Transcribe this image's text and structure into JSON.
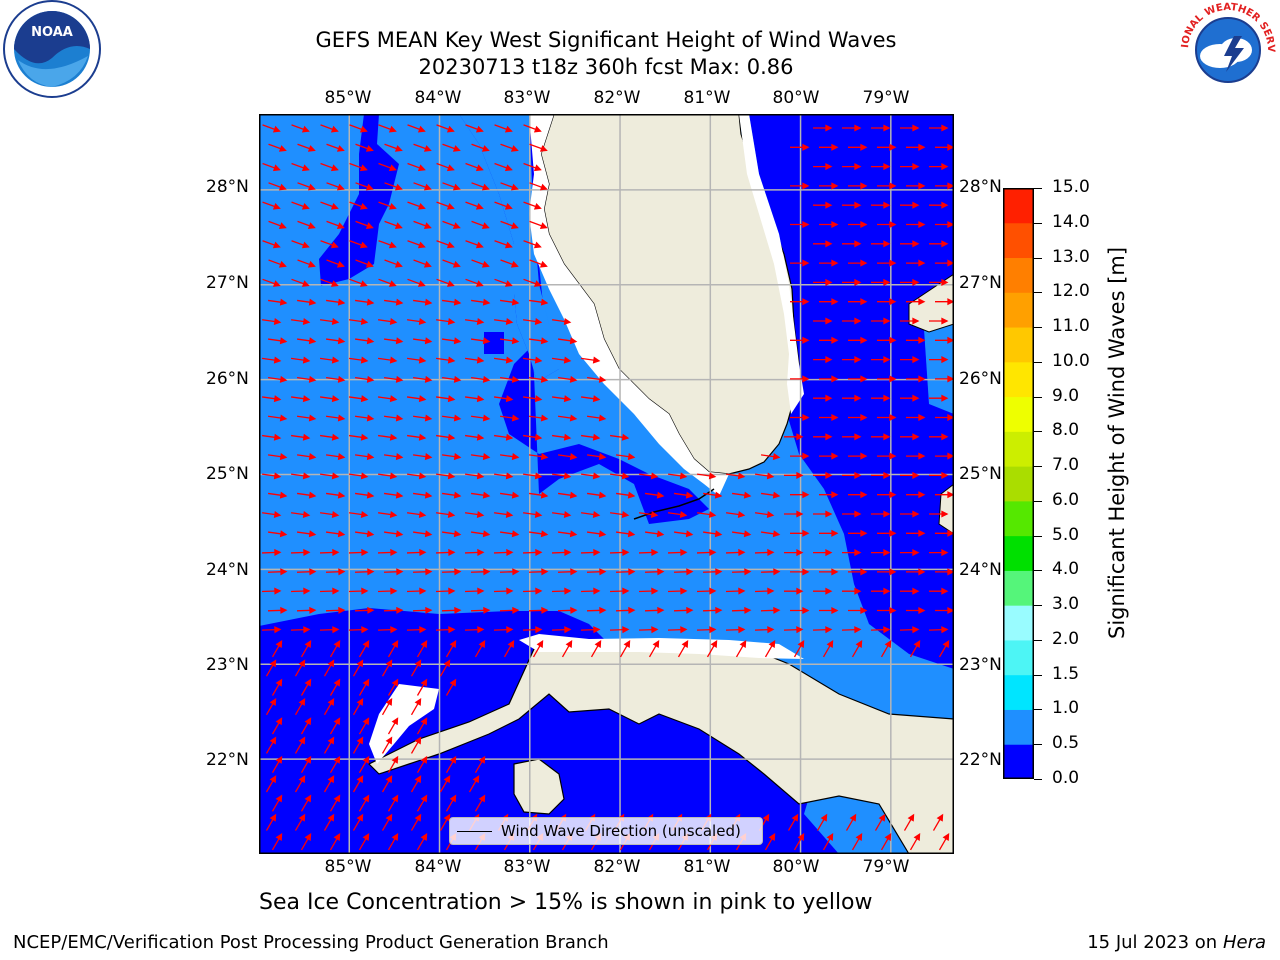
{
  "title": {
    "line1": "GEFS MEAN Key West Significant Height of Wind Waves",
    "line2": "20230713 t18z 360h fcst   Max: 0.86"
  },
  "logos": {
    "left": "NOAA",
    "right": "NATIONAL WEATHER SERVICE"
  },
  "map": {
    "lon_labels": [
      "85°W",
      "84°W",
      "83°W",
      "82°W",
      "81°W",
      "80°W",
      "79°W"
    ],
    "lat_labels": [
      "28°N",
      "27°N",
      "26°N",
      "25°N",
      "24°N",
      "23°N",
      "22°N"
    ],
    "extent": {
      "lon": [
        -86.0,
        -78.3
      ],
      "lat": [
        21.0,
        28.8
      ]
    },
    "land_color": "#eeecdc",
    "ocean_colors": {
      "0.0-0.5": "#0000ff",
      "0.5-1.0": "#1f8fff"
    },
    "arrow_color": "#ff0000",
    "grid": true
  },
  "colorbar": {
    "label": "Significant Height of Wind Waves [m]",
    "ticks": [
      "15.0",
      "14.0",
      "13.0",
      "12.0",
      "11.0",
      "10.0",
      "9.0",
      "8.0",
      "7.0",
      "6.0",
      "5.0",
      "4.0",
      "3.0",
      "2.0",
      "1.5",
      "1.0",
      "0.5",
      "0.0"
    ],
    "levels": [
      0.0,
      0.5,
      1.0,
      1.5,
      2.0,
      3.0,
      4.0,
      5.0,
      6.0,
      7.0,
      8.0,
      9.0,
      10.0,
      11.0,
      12.0,
      13.0,
      14.0,
      15.0
    ],
    "colors": [
      "#0000ff",
      "#1f8fff",
      "#00e5ff",
      "#4df5f5",
      "#99fcff",
      "#55f57a",
      "#00e000",
      "#55e800",
      "#aadd00",
      "#ccee00",
      "#eeff00",
      "#ffe600",
      "#ffc800",
      "#ffa000",
      "#ff7f00",
      "#ff5000",
      "#ff2000"
    ]
  },
  "legend": {
    "label": "Wind Wave Direction (unscaled)"
  },
  "note": "Sea Ice Concentration > 15% is shown in pink to yellow",
  "footer": {
    "left": "NCEP/EMC/Verification Post Processing Product Generation Branch",
    "date": "15 Jul 2023 on",
    "machine": "Hera"
  }
}
